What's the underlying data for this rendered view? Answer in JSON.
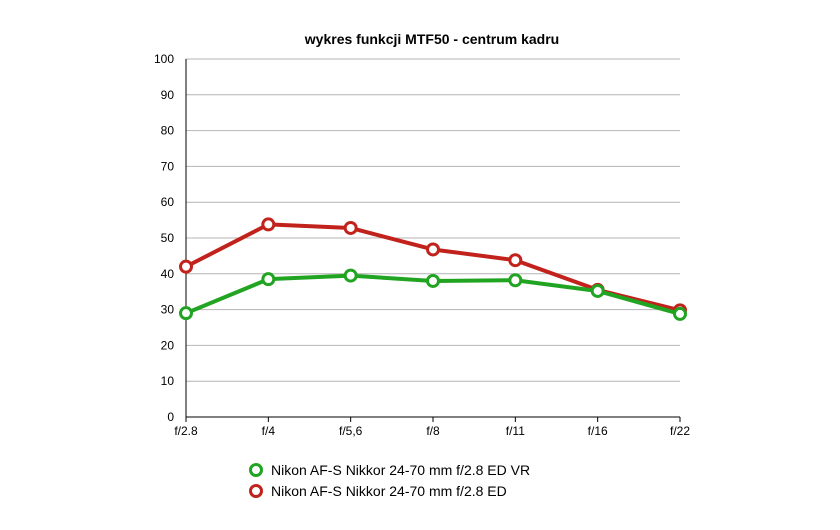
{
  "chart_data": {
    "type": "line",
    "title": "wykres funkcji MTF50 - centrum kadru",
    "xlabel": "",
    "ylabel": "",
    "categories": [
      "f/2.8",
      "f/4",
      "f/5,6",
      "f/8",
      "f/11",
      "f/16",
      "f/22"
    ],
    "yticks": [
      "0",
      "10",
      "20",
      "30",
      "40",
      "50",
      "60",
      "70",
      "80",
      "90",
      "100"
    ],
    "ylim": [
      0,
      100
    ],
    "grid": true,
    "legend": "bottom",
    "series": [
      {
        "name": "Nikon AF-S Nikkor 24-70 mm f/2.8 ED VR",
        "color": "#21a421",
        "values": [
          29,
          38.5,
          39.5,
          38,
          38.2,
          35.2,
          28.8
        ]
      },
      {
        "name": "Nikon AF-S Nikkor 24-70 mm f/2.8 ED",
        "color": "#c2221c",
        "values": [
          42,
          53.8,
          52.8,
          46.8,
          43.8,
          35.5,
          29.8
        ]
      }
    ]
  }
}
